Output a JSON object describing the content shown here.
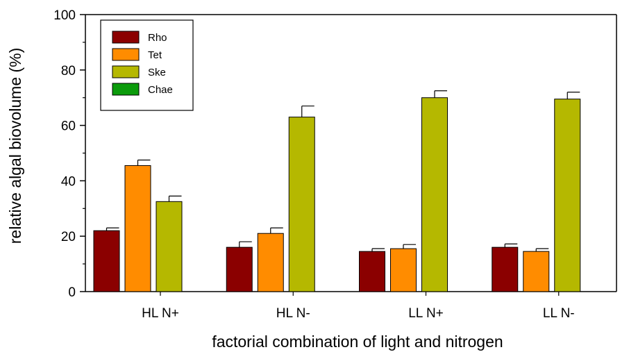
{
  "chart_data": {
    "type": "bar",
    "xlabel": "factorial combination of light and nitrogen",
    "ylabel": "relative algal biovolume (%)",
    "ylim": [
      0,
      100
    ],
    "yticks": [
      "0",
      "20",
      "40",
      "60",
      "80",
      "100"
    ],
    "categories": [
      "HL N+",
      "HL N-",
      "LL N+",
      "LL N-"
    ],
    "series": [
      {
        "name": "Rho",
        "color": "#8b0000",
        "values": [
          22,
          16,
          14.5,
          16
        ],
        "errors": [
          1,
          2,
          1,
          1.2
        ]
      },
      {
        "name": "Tet",
        "color": "#ff8c00",
        "values": [
          45.5,
          21,
          15.5,
          14.5
        ],
        "errors": [
          2,
          2,
          1.5,
          1
        ]
      },
      {
        "name": "Ske",
        "color": "#b5b800",
        "values": [
          32.5,
          63,
          70,
          69.5
        ],
        "errors": [
          2,
          4,
          2.5,
          2.5
        ]
      },
      {
        "name": "Chae",
        "color": "#0b9b0b",
        "values": [
          0,
          0,
          0,
          0
        ],
        "errors": [
          0,
          0,
          0,
          0
        ]
      }
    ],
    "legend_position": "top-left",
    "grid": false
  }
}
